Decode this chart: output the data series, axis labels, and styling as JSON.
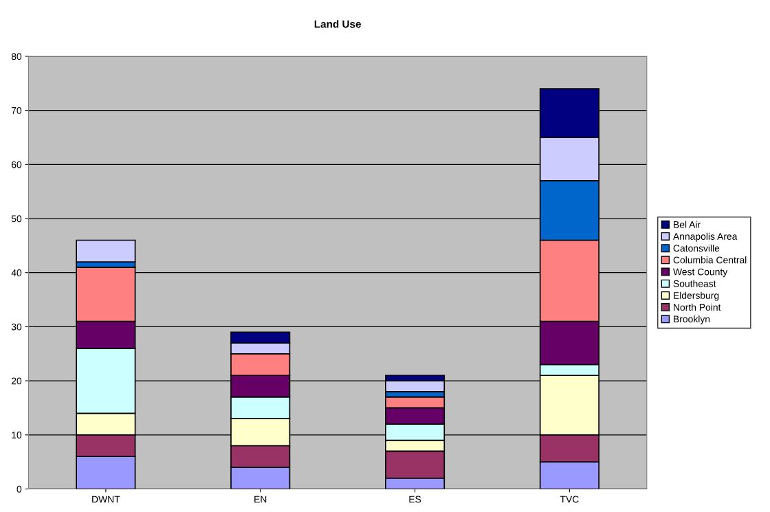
{
  "chart_data": {
    "type": "bar",
    "title": "Land Use",
    "stacked": true,
    "categories": [
      "DWNT",
      "EN",
      "ES",
      "TVC"
    ],
    "series": [
      {
        "name": "Brooklyn",
        "color": "#9999ff",
        "values": [
          6,
          4,
          2,
          5
        ]
      },
      {
        "name": "North Point",
        "color": "#993366",
        "values": [
          4,
          4,
          5,
          5
        ]
      },
      {
        "name": "Eldersburg",
        "color": "#ffffcc",
        "values": [
          4,
          5,
          2,
          11
        ]
      },
      {
        "name": "Southeast",
        "color": "#ccffff",
        "values": [
          12,
          4,
          3,
          2
        ]
      },
      {
        "name": "West County",
        "color": "#660066",
        "values": [
          5,
          4,
          3,
          8
        ]
      },
      {
        "name": "Columbia Central",
        "color": "#ff8080",
        "values": [
          10,
          4,
          2,
          15
        ]
      },
      {
        "name": "Catonsville",
        "color": "#0066cc",
        "values": [
          1,
          null,
          1,
          11
        ]
      },
      {
        "name": "Annapolis Area",
        "color": "#ccccff",
        "values": [
          4,
          2,
          2,
          8
        ]
      },
      {
        "name": "Bel Air",
        "color": "#000080",
        "values": [
          null,
          2,
          1,
          9
        ]
      }
    ],
    "ylim": [
      0,
      80
    ],
    "yticks": [
      0,
      10,
      20,
      30,
      40,
      50,
      60,
      70,
      80
    ],
    "grid": "y",
    "legend": "right"
  }
}
